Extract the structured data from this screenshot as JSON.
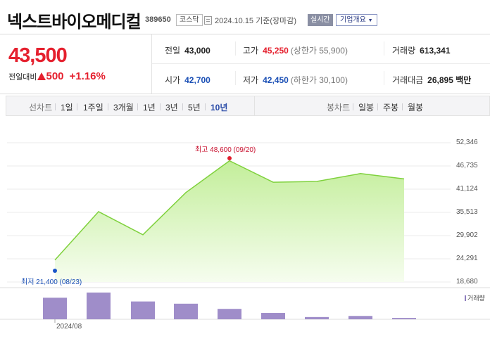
{
  "header": {
    "stock_name": "넥스트바이오메디컬",
    "stock_code": "389650",
    "market": "코스닥",
    "date": "2024.10.15 기준(장마감)",
    "realtime_label": "실시간",
    "company_info_label": "기업개요",
    "dropdown_icon": "chevron-down-icon"
  },
  "quote": {
    "price": "43,500",
    "change_label": "전일대비",
    "change_amount": "500",
    "change_percent": "+1.16%",
    "prev_close": {
      "label": "전일",
      "value": "43,000"
    },
    "high": {
      "label": "고가",
      "value": "45,250",
      "sub": "(상한가 55,900)"
    },
    "volume": {
      "label": "거래량",
      "value": "613,341"
    },
    "open": {
      "label": "시가",
      "value": "42,700"
    },
    "low": {
      "label": "저가",
      "value": "42,450",
      "sub": "(하한가 30,100)"
    },
    "turnover": {
      "label": "거래대금",
      "value": "26,895 백만"
    }
  },
  "tabs": {
    "line_chart_label": "선차트",
    "line_periods": [
      "1일",
      "1주일",
      "3개월",
      "1년",
      "3년",
      "5년",
      "10년"
    ],
    "active_period": "10년",
    "candle_chart_label": "봉차트",
    "candle_periods": [
      "일봉",
      "주봉",
      "월봉"
    ]
  },
  "chart_data": {
    "type": "area",
    "y_ticks": [
      "52,346",
      "46,735",
      "41,124",
      "35,513",
      "29,902",
      "24,291",
      "18,680"
    ],
    "ylim": [
      18680,
      52346
    ],
    "x_labels": [
      "2024/08"
    ],
    "price_series": [
      24000,
      35700,
      30100,
      40300,
      48000,
      42800,
      43000,
      44900,
      43600
    ],
    "volume_series": [
      2900000,
      3600000,
      2400000,
      2100000,
      1400000,
      850000,
      300000,
      450000,
      180000
    ],
    "high_annotation": "최고 48,600 (09/20)",
    "low_annotation": "최저 21,400 (08/23)",
    "high_marker_value": 48600,
    "low_marker_value": 21400,
    "volume_legend": "거래량",
    "colors": {
      "line": "#7fd13d",
      "fill_top": "#c3ee9a",
      "fill_bottom": "#f6fdef",
      "volume_bar": "#9f8dc9",
      "high_marker": "#e01e2d",
      "low_marker": "#1a56c8"
    }
  }
}
